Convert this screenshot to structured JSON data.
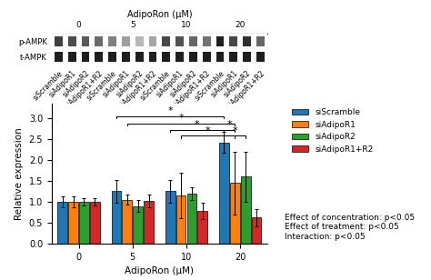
{
  "chart_data": [
    {
      "type": "heatmap",
      "title": "AdipoRon (μM)",
      "rows": [
        "p-AMPK",
        "t-AMPK"
      ],
      "groups": [
        "0",
        "5",
        "10",
        "20"
      ],
      "categories": [
        "siScramble",
        "siAdipoR1",
        "siAdipoR2",
        "siAdipoR1+R2",
        "siScramble",
        "siAdipoR1",
        "siAdipoR2",
        "siAdipoR1+R2",
        "siScramble",
        "siAdipoR1",
        "siAdipoR2",
        "siAdipoR1+R2",
        "siScramble",
        "siAdipoR1",
        "siAdipoR2",
        "siAdipoR1+R2"
      ],
      "cells": [
        [
          0.75,
          0.7,
          0.65,
          0.58,
          0.5,
          0.38,
          0.28,
          0.35,
          0.72,
          0.68,
          0.6,
          0.55,
          0.88,
          0.72,
          0.82,
          0.6
        ],
        [
          0.88,
          0.88,
          0.88,
          0.88,
          0.88,
          0.88,
          0.88,
          0.88,
          0.88,
          0.88,
          0.88,
          0.88,
          0.88,
          0.88,
          0.88,
          0.88
        ]
      ],
      "zlim": [
        0,
        1
      ]
    },
    {
      "type": "bar",
      "categories": [
        "0",
        "5",
        "10",
        "20"
      ],
      "xlabel": "AdipoRon (μM)",
      "ylabel": "Relative expression",
      "series": [
        {
          "name": "siScramble",
          "values": [
            1.0,
            1.25,
            1.25,
            2.42
          ],
          "errors": [
            0.12,
            0.28,
            0.28,
            0.25
          ]
        },
        {
          "name": "siAdipoR1",
          "values": [
            1.0,
            1.05,
            1.15,
            1.45
          ],
          "errors": [
            0.12,
            0.12,
            0.55,
            0.75
          ]
        },
        {
          "name": "siAdipoR2",
          "values": [
            1.0,
            0.9,
            1.2,
            1.6
          ],
          "errors": [
            0.08,
            0.15,
            0.15,
            0.6
          ]
        },
        {
          "name": "siAdipoR1+R2",
          "values": [
            1.0,
            1.02,
            0.78,
            0.62
          ],
          "errors": [
            0.08,
            0.15,
            0.2,
            0.2
          ]
        }
      ],
      "ylim": [
        0,
        3.35
      ],
      "yticks": [
        0.0,
        0.5,
        1.0,
        1.5,
        2.0,
        2.5,
        3.0
      ],
      "legend": "upper left",
      "brackets": [
        {
          "from": {
            "category": "5",
            "series": "siScramble"
          },
          "to": {
            "category": "20",
            "series": "siScramble"
          },
          "y": 3.05,
          "label": "*"
        },
        {
          "from": {
            "category": "5",
            "series": "siAdipoR1"
          },
          "to": {
            "category": "20",
            "series": "siAdipoR1"
          },
          "y": 2.88,
          "label": "*"
        },
        {
          "from": {
            "category": "10",
            "series": "siScramble"
          },
          "to": {
            "category": "20",
            "series": "siScramble"
          },
          "y": 2.72,
          "label": "*"
        },
        {
          "from": {
            "category": "10",
            "series": "siAdipoR1"
          },
          "to": {
            "category": "20",
            "series": "siAdipoR1"
          },
          "y": 2.58,
          "label": "*"
        },
        {
          "from": {
            "category": "20",
            "series": "siScramble"
          },
          "to": {
            "category": "20",
            "series": "siAdipoR1"
          },
          "y": 2.72,
          "label": "*"
        },
        {
          "from": {
            "category": "20",
            "series": "siScramble"
          },
          "to": {
            "category": "20",
            "series": "siAdipoR2"
          },
          "y": 2.58,
          "label": "*"
        }
      ],
      "annotations": [
        "Effect of concentration: p<0.05\nEffect of treatment: p<0.05\nInteraction: p<0.05"
      ]
    }
  ]
}
